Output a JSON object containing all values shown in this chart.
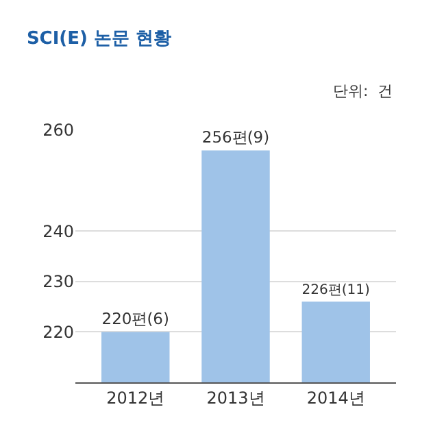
{
  "chart_data": {
    "type": "bar",
    "title": "SCI(E) 논문 현황",
    "annotations": [
      "단위:  건"
    ],
    "categories": [
      "2012년",
      "2013년",
      "2014년"
    ],
    "values": [
      220,
      256,
      226
    ],
    "value_labels": [
      "220편(6)",
      "256편(9)",
      "226편(11)"
    ],
    "color": "#9fc3e8",
    "ylim": [
      210,
      260
    ],
    "yticks": [
      220,
      230,
      240,
      260
    ],
    "grid": "y"
  }
}
